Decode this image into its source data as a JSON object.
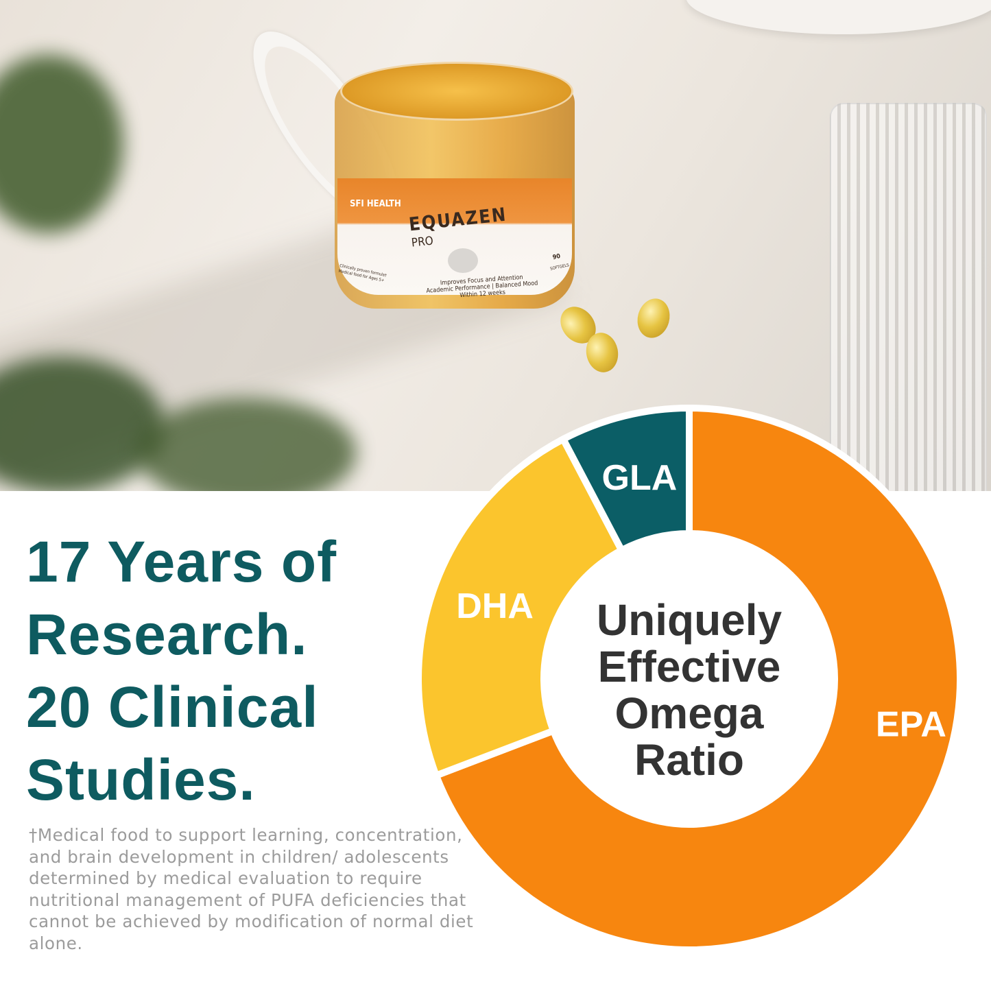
{
  "product_photo": {
    "brand_logo_text": "SFI HEALTH",
    "product_name": "EQUAZEN",
    "product_variant": "PRO",
    "claim_lines": [
      "Improves Focus and Attention",
      "Academic Performance | Balanced Mood",
      "Within 12 weeks"
    ],
    "side_text": [
      "Clinically proven formula†",
      "Medical food for Ages 5+"
    ],
    "count": "90",
    "count_unit": "SOFTGELS"
  },
  "headline": [
    "17 Years of",
    "Research.",
    "20 Clinical",
    "Studies."
  ],
  "footnote": "†Medical food to support learning, concentration, and brain development in children/ adolescents determined by medical evaluation to require nutritional management of PUFA deficiencies that cannot be achieved by modification of normal diet alone.",
  "chart_data": {
    "type": "pie",
    "donut": true,
    "center_text": [
      "Uniquely",
      "Effective",
      "Omega",
      "Ratio"
    ],
    "categories": [
      "EPA",
      "DHA",
      "GLA"
    ],
    "values": [
      69.2,
      23.1,
      7.7
    ],
    "colors": [
      "#f7860f",
      "#fbc52d",
      "#0b5e66"
    ]
  },
  "colors": {
    "headline": "#0e5b60",
    "footnote": "#9b9b9b",
    "center_text": "#333333"
  }
}
